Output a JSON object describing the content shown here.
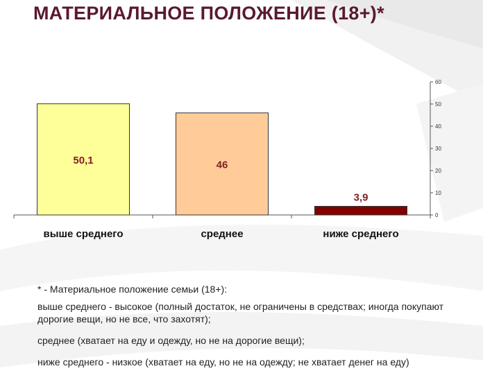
{
  "title": "МАТЕРИАЛЬНОЕ ПОЛОЖЕНИЕ (18+)*",
  "chart_data": {
    "type": "bar",
    "title": "",
    "xlabel": "",
    "ylabel": "",
    "categories": [
      "выше среднего",
      "среднее",
      "ниже среднего"
    ],
    "values": [
      50.1,
      46,
      3.9
    ],
    "value_labels": [
      "50,1",
      "46",
      "3,9"
    ],
    "ylim": [
      0,
      60
    ],
    "yticks": [
      0,
      10,
      20,
      30,
      40,
      50,
      60
    ],
    "yaxis_position": "right",
    "grid": false,
    "legend": "none",
    "colors": {
      "bars": [
        "#ffff99",
        "#ffcc99",
        "#800000"
      ],
      "labels": [
        "#7f1f1f",
        "#7f1f1f",
        "#7f1f1f"
      ],
      "bar_edge": "#333333",
      "axis": "#555555"
    }
  },
  "notes": {
    "line1": "* - Материальное положение семьи (18+):",
    "line2": "выше среднего - высокое (полный достаток, не ограничены в средствах; иногда покупают дорогие вещи, но не все, что захотят);",
    "line3": "среднее (хватает на еду и одежду, но не на дорогие вещи);",
    "line4": "ниже среднего - низкое (хватает на еду, но не на одежду; не хватает денег на еду)"
  },
  "colors": {
    "title": "#5a1a2c",
    "text": "#1f1f1f",
    "background_swoosh": "#f1f1f1"
  }
}
